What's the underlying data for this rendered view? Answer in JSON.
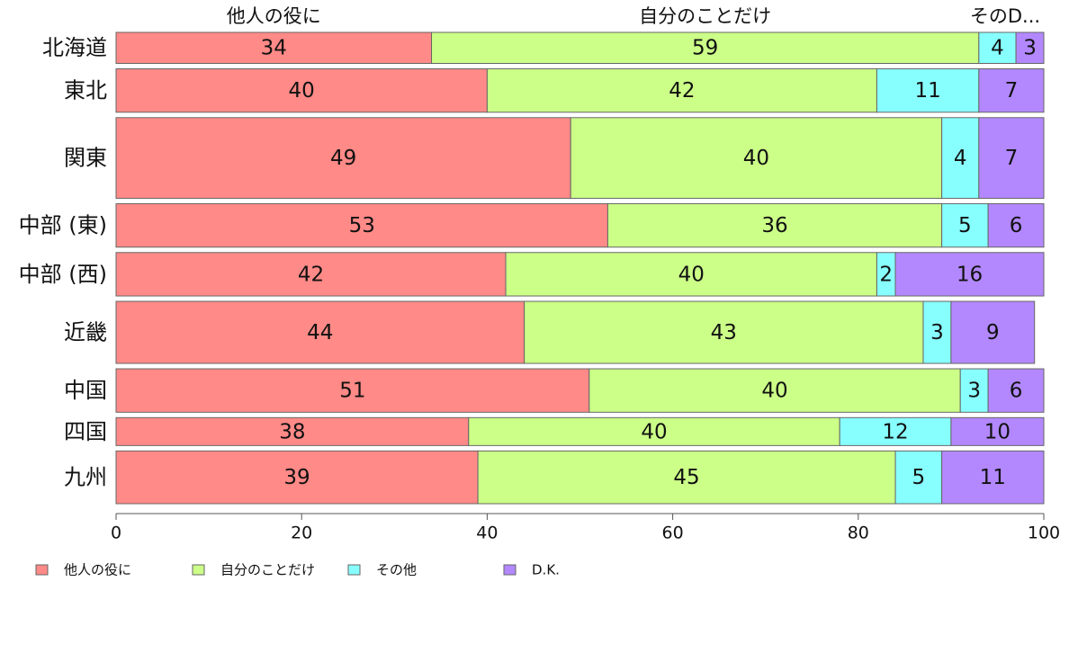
{
  "chart_data": {
    "type": "bar",
    "orientation": "horizontal",
    "stacked": true,
    "xlim": [
      0,
      100
    ],
    "x_ticks": [
      0,
      20,
      40,
      60,
      80,
      100
    ],
    "grid": false,
    "legend_position": "bottom-left",
    "top_labels": [
      "他人の役に",
      "自分のことだけ",
      "そのD..."
    ],
    "categories": [
      "北海道",
      "東北",
      "関東",
      "中部 (東)",
      "中部 (西)",
      "近畿",
      "中国",
      "四国",
      "九州"
    ],
    "relative_bar_widths": [
      1,
      1.4,
      2.6,
      1.4,
      1.4,
      2,
      1.4,
      0.9,
      1.7
    ],
    "series": [
      {
        "name": "他人の役に",
        "color": "#ff8a87",
        "values": [
          34,
          40,
          49,
          53,
          42,
          44,
          51,
          38,
          39
        ]
      },
      {
        "name": "自分のことだけ",
        "color": "#ccff88",
        "values": [
          59,
          42,
          40,
          36,
          40,
          43,
          40,
          40,
          45
        ]
      },
      {
        "name": "その他",
        "color": "#88ffff",
        "values": [
          4,
          11,
          4,
          5,
          2,
          3,
          3,
          12,
          5
        ]
      },
      {
        "name": "D.K.",
        "color": "#b388ff",
        "values": [
          3,
          7,
          7,
          6,
          16,
          9,
          6,
          10,
          11
        ]
      }
    ]
  }
}
